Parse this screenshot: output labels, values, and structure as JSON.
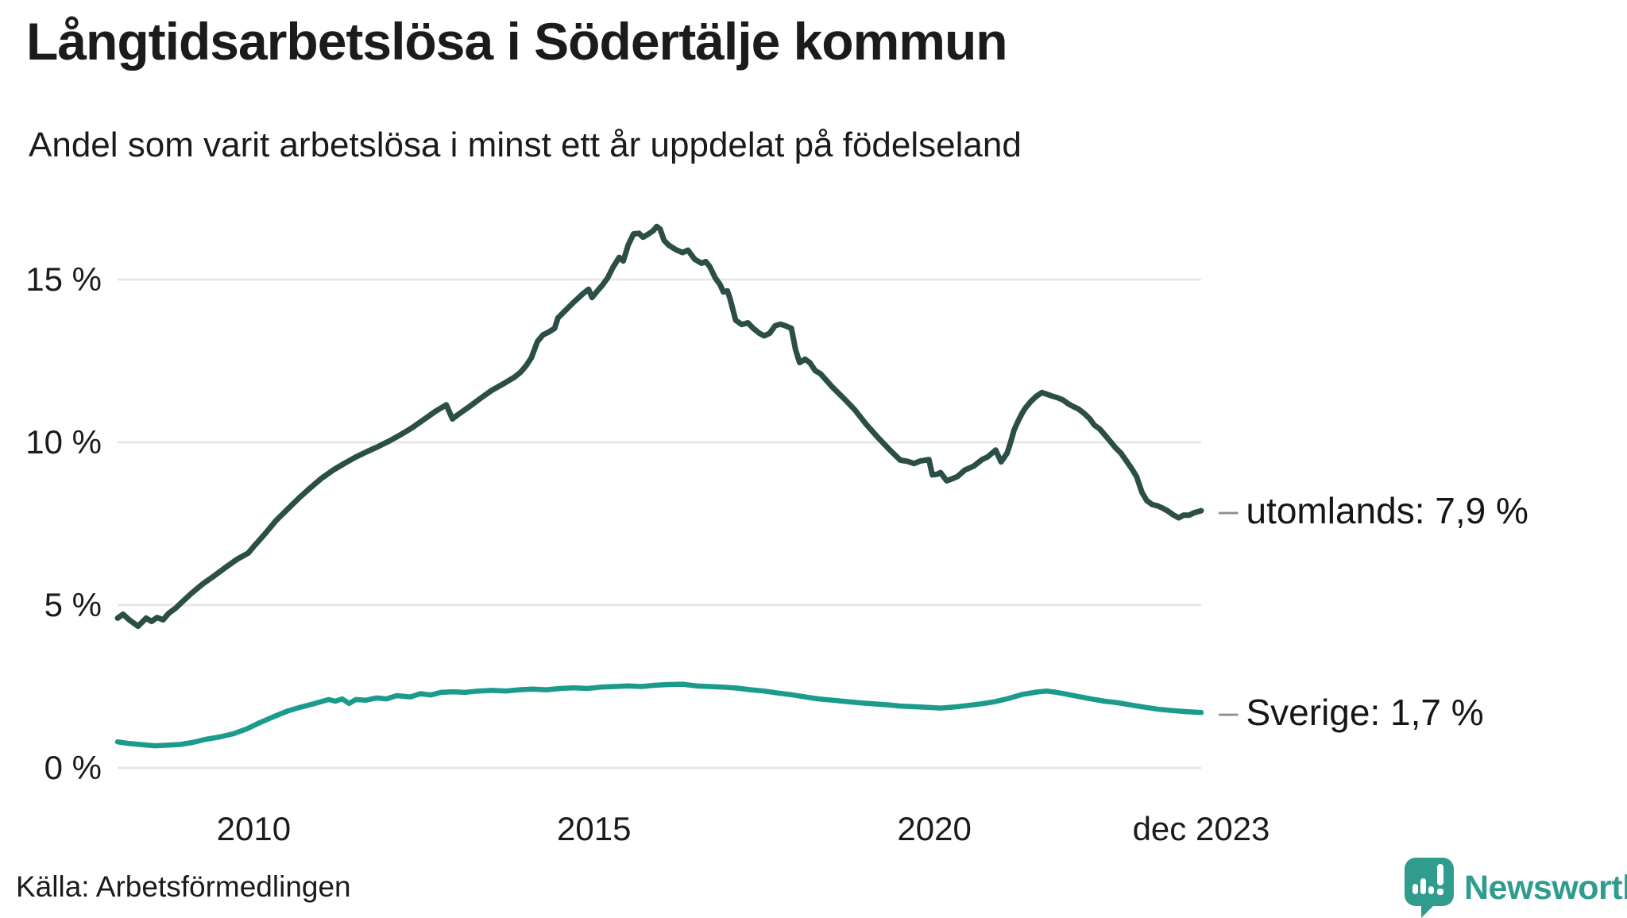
{
  "page": {
    "title": "Långtidsarbetslösa i Södertälje kommun",
    "subtitle": "Andel som varit arbetslösa i minst ett år uppdelat på födelseland",
    "source": "Källa: Arbetsförmedlingen",
    "brand": "Newsworthy"
  },
  "colors": {
    "background": "#ffffff",
    "grid": "#e7e7e7",
    "text": "#1b1b1b",
    "label_dash": "#8f8f8f",
    "utomlands_line": "#2b4f47",
    "sverige_line": "#1b9b8c",
    "brand_teal": "#2f9c8e"
  },
  "chart_data": {
    "type": "line",
    "title": "Långtidsarbetslösa i Södertälje kommun",
    "subtitle": "Andel som varit arbetslösa i minst ett år uppdelat på födelseland",
    "xlabel": "",
    "ylabel": "",
    "yunit": "%",
    "grid": true,
    "legend_position": "end-of-line-labels",
    "xlim": [
      2008.0,
      2023.92
    ],
    "ylim": [
      0,
      17
    ],
    "x_ticks": [
      {
        "year": 2010,
        "label": "2010"
      },
      {
        "year": 2015,
        "label": "2015"
      },
      {
        "year": 2020,
        "label": "2020"
      },
      {
        "year": 2023.92,
        "label": "dec 2023"
      }
    ],
    "y_ticks": [
      {
        "value": 0,
        "label": "0 %"
      },
      {
        "value": 5,
        "label": "5 %"
      },
      {
        "value": 10,
        "label": "10 %"
      },
      {
        "value": 15,
        "label": "15 %"
      }
    ],
    "series": [
      {
        "name": "utomlands",
        "color": "#2b4f47",
        "end_label": "utomlands: 7,9 %",
        "end_value": 7.9,
        "label_dash": "–",
        "points": [
          [
            2008.0,
            4.6
          ],
          [
            2008.08,
            4.72
          ],
          [
            2008.17,
            4.55
          ],
          [
            2008.3,
            4.35
          ],
          [
            2008.42,
            4.6
          ],
          [
            2008.5,
            4.5
          ],
          [
            2008.58,
            4.62
          ],
          [
            2008.67,
            4.55
          ],
          [
            2008.75,
            4.75
          ],
          [
            2008.85,
            4.9
          ],
          [
            2008.95,
            5.1
          ],
          [
            2009.08,
            5.35
          ],
          [
            2009.25,
            5.65
          ],
          [
            2009.42,
            5.9
          ],
          [
            2009.58,
            6.15
          ],
          [
            2009.75,
            6.4
          ],
          [
            2009.92,
            6.6
          ],
          [
            2010.0,
            6.8
          ],
          [
            2010.17,
            7.2
          ],
          [
            2010.33,
            7.6
          ],
          [
            2010.5,
            7.95
          ],
          [
            2010.67,
            8.3
          ],
          [
            2010.83,
            8.6
          ],
          [
            2011.0,
            8.9
          ],
          [
            2011.17,
            9.15
          ],
          [
            2011.33,
            9.35
          ],
          [
            2011.5,
            9.55
          ],
          [
            2011.67,
            9.72
          ],
          [
            2011.83,
            9.87
          ],
          [
            2012.0,
            10.05
          ],
          [
            2012.17,
            10.25
          ],
          [
            2012.33,
            10.45
          ],
          [
            2012.5,
            10.7
          ],
          [
            2012.67,
            10.95
          ],
          [
            2012.83,
            11.15
          ],
          [
            2012.92,
            10.72
          ],
          [
            2013.0,
            10.85
          ],
          [
            2013.17,
            11.1
          ],
          [
            2013.33,
            11.35
          ],
          [
            2013.5,
            11.6
          ],
          [
            2013.67,
            11.8
          ],
          [
            2013.83,
            12.0
          ],
          [
            2013.92,
            12.15
          ],
          [
            2014.0,
            12.35
          ],
          [
            2014.08,
            12.6
          ],
          [
            2014.17,
            13.1
          ],
          [
            2014.25,
            13.3
          ],
          [
            2014.33,
            13.38
          ],
          [
            2014.42,
            13.5
          ],
          [
            2014.47,
            13.82
          ],
          [
            2014.58,
            14.05
          ],
          [
            2014.7,
            14.3
          ],
          [
            2014.83,
            14.55
          ],
          [
            2014.92,
            14.7
          ],
          [
            2014.97,
            14.45
          ],
          [
            2015.05,
            14.65
          ],
          [
            2015.12,
            14.82
          ],
          [
            2015.2,
            15.05
          ],
          [
            2015.28,
            15.38
          ],
          [
            2015.37,
            15.68
          ],
          [
            2015.43,
            15.57
          ],
          [
            2015.5,
            16.05
          ],
          [
            2015.58,
            16.4
          ],
          [
            2015.66,
            16.42
          ],
          [
            2015.72,
            16.3
          ],
          [
            2015.8,
            16.4
          ],
          [
            2015.87,
            16.5
          ],
          [
            2015.92,
            16.63
          ],
          [
            2015.97,
            16.55
          ],
          [
            2016.03,
            16.2
          ],
          [
            2016.1,
            16.05
          ],
          [
            2016.2,
            15.92
          ],
          [
            2016.3,
            15.83
          ],
          [
            2016.38,
            15.9
          ],
          [
            2016.48,
            15.62
          ],
          [
            2016.58,
            15.5
          ],
          [
            2016.64,
            15.55
          ],
          [
            2016.7,
            15.4
          ],
          [
            2016.78,
            15.05
          ],
          [
            2016.85,
            14.85
          ],
          [
            2016.9,
            14.62
          ],
          [
            2016.96,
            14.65
          ],
          [
            2017.0,
            14.4
          ],
          [
            2017.08,
            13.75
          ],
          [
            2017.17,
            13.62
          ],
          [
            2017.26,
            13.67
          ],
          [
            2017.34,
            13.5
          ],
          [
            2017.43,
            13.35
          ],
          [
            2017.5,
            13.27
          ],
          [
            2017.58,
            13.35
          ],
          [
            2017.66,
            13.58
          ],
          [
            2017.74,
            13.63
          ],
          [
            2017.82,
            13.57
          ],
          [
            2017.9,
            13.5
          ],
          [
            2017.96,
            12.85
          ],
          [
            2018.02,
            12.45
          ],
          [
            2018.1,
            12.55
          ],
          [
            2018.17,
            12.45
          ],
          [
            2018.25,
            12.2
          ],
          [
            2018.33,
            12.1
          ],
          [
            2018.5,
            11.7
          ],
          [
            2018.67,
            11.35
          ],
          [
            2018.83,
            11.0
          ],
          [
            2019.0,
            10.55
          ],
          [
            2019.17,
            10.15
          ],
          [
            2019.33,
            9.8
          ],
          [
            2019.5,
            9.45
          ],
          [
            2019.6,
            9.42
          ],
          [
            2019.7,
            9.35
          ],
          [
            2019.8,
            9.43
          ],
          [
            2019.92,
            9.47
          ],
          [
            2019.97,
            9.0
          ],
          [
            2020.04,
            9.02
          ],
          [
            2020.09,
            9.07
          ],
          [
            2020.18,
            8.82
          ],
          [
            2020.25,
            8.87
          ],
          [
            2020.34,
            8.95
          ],
          [
            2020.45,
            9.15
          ],
          [
            2020.58,
            9.27
          ],
          [
            2020.7,
            9.47
          ],
          [
            2020.78,
            9.55
          ],
          [
            2020.9,
            9.76
          ],
          [
            2020.98,
            9.4
          ],
          [
            2021.07,
            9.67
          ],
          [
            2021.12,
            10.0
          ],
          [
            2021.17,
            10.37
          ],
          [
            2021.23,
            10.65
          ],
          [
            2021.29,
            10.9
          ],
          [
            2021.34,
            11.06
          ],
          [
            2021.42,
            11.26
          ],
          [
            2021.5,
            11.42
          ],
          [
            2021.58,
            11.53
          ],
          [
            2021.65,
            11.48
          ],
          [
            2021.73,
            11.42
          ],
          [
            2021.81,
            11.37
          ],
          [
            2021.89,
            11.3
          ],
          [
            2021.97,
            11.18
          ],
          [
            2022.04,
            11.1
          ],
          [
            2022.12,
            11.02
          ],
          [
            2022.2,
            10.89
          ],
          [
            2022.28,
            10.73
          ],
          [
            2022.35,
            10.53
          ],
          [
            2022.43,
            10.41
          ],
          [
            2022.5,
            10.24
          ],
          [
            2022.58,
            10.04
          ],
          [
            2022.66,
            9.84
          ],
          [
            2022.74,
            9.67
          ],
          [
            2022.82,
            9.43
          ],
          [
            2022.9,
            9.19
          ],
          [
            2022.97,
            8.95
          ],
          [
            2023.05,
            8.46
          ],
          [
            2023.12,
            8.21
          ],
          [
            2023.2,
            8.09
          ],
          [
            2023.28,
            8.05
          ],
          [
            2023.36,
            7.97
          ],
          [
            2023.43,
            7.89
          ],
          [
            2023.51,
            7.77
          ],
          [
            2023.59,
            7.68
          ],
          [
            2023.66,
            7.76
          ],
          [
            2023.74,
            7.76
          ],
          [
            2023.82,
            7.84
          ],
          [
            2023.92,
            7.9
          ]
        ]
      },
      {
        "name": "Sverige",
        "color": "#1b9b8c",
        "end_label": "Sverige: 1,7 %",
        "end_value": 1.7,
        "label_dash": "–",
        "points": [
          [
            2008.0,
            0.8
          ],
          [
            2008.17,
            0.75
          ],
          [
            2008.33,
            0.72
          ],
          [
            2008.55,
            0.68
          ],
          [
            2008.75,
            0.7
          ],
          [
            2008.92,
            0.72
          ],
          [
            2009.1,
            0.78
          ],
          [
            2009.3,
            0.88
          ],
          [
            2009.5,
            0.95
          ],
          [
            2009.7,
            1.05
          ],
          [
            2009.9,
            1.2
          ],
          [
            2010.1,
            1.4
          ],
          [
            2010.3,
            1.58
          ],
          [
            2010.5,
            1.75
          ],
          [
            2010.7,
            1.87
          ],
          [
            2010.9,
            1.98
          ],
          [
            2011.1,
            2.1
          ],
          [
            2011.2,
            2.05
          ],
          [
            2011.3,
            2.12
          ],
          [
            2011.4,
            1.98
          ],
          [
            2011.5,
            2.1
          ],
          [
            2011.65,
            2.08
          ],
          [
            2011.8,
            2.15
          ],
          [
            2011.95,
            2.12
          ],
          [
            2012.1,
            2.22
          ],
          [
            2012.3,
            2.18
          ],
          [
            2012.45,
            2.28
          ],
          [
            2012.6,
            2.24
          ],
          [
            2012.75,
            2.32
          ],
          [
            2012.93,
            2.34
          ],
          [
            2013.1,
            2.32
          ],
          [
            2013.3,
            2.36
          ],
          [
            2013.5,
            2.38
          ],
          [
            2013.7,
            2.36
          ],
          [
            2013.9,
            2.4
          ],
          [
            2014.1,
            2.42
          ],
          [
            2014.3,
            2.4
          ],
          [
            2014.5,
            2.44
          ],
          [
            2014.7,
            2.46
          ],
          [
            2014.9,
            2.44
          ],
          [
            2015.1,
            2.48
          ],
          [
            2015.3,
            2.5
          ],
          [
            2015.5,
            2.52
          ],
          [
            2015.7,
            2.5
          ],
          [
            2015.9,
            2.54
          ],
          [
            2016.1,
            2.56
          ],
          [
            2016.3,
            2.57
          ],
          [
            2016.5,
            2.52
          ],
          [
            2016.7,
            2.5
          ],
          [
            2016.9,
            2.48
          ],
          [
            2017.1,
            2.45
          ],
          [
            2017.3,
            2.4
          ],
          [
            2017.5,
            2.36
          ],
          [
            2017.7,
            2.3
          ],
          [
            2017.9,
            2.25
          ],
          [
            2018.1,
            2.18
          ],
          [
            2018.3,
            2.12
          ],
          [
            2018.5,
            2.08
          ],
          [
            2018.7,
            2.04
          ],
          [
            2018.9,
            2.0
          ],
          [
            2019.1,
            1.97
          ],
          [
            2019.3,
            1.94
          ],
          [
            2019.5,
            1.9
          ],
          [
            2019.7,
            1.88
          ],
          [
            2019.9,
            1.86
          ],
          [
            2020.1,
            1.84
          ],
          [
            2020.3,
            1.87
          ],
          [
            2020.5,
            1.92
          ],
          [
            2020.7,
            1.97
          ],
          [
            2020.9,
            2.04
          ],
          [
            2021.1,
            2.14
          ],
          [
            2021.3,
            2.26
          ],
          [
            2021.5,
            2.33
          ],
          [
            2021.65,
            2.36
          ],
          [
            2021.8,
            2.32
          ],
          [
            2021.95,
            2.26
          ],
          [
            2022.1,
            2.2
          ],
          [
            2022.3,
            2.12
          ],
          [
            2022.5,
            2.05
          ],
          [
            2022.7,
            2.0
          ],
          [
            2022.9,
            1.93
          ],
          [
            2023.1,
            1.86
          ],
          [
            2023.3,
            1.8
          ],
          [
            2023.5,
            1.76
          ],
          [
            2023.7,
            1.73
          ],
          [
            2023.92,
            1.7
          ]
        ]
      }
    ]
  }
}
